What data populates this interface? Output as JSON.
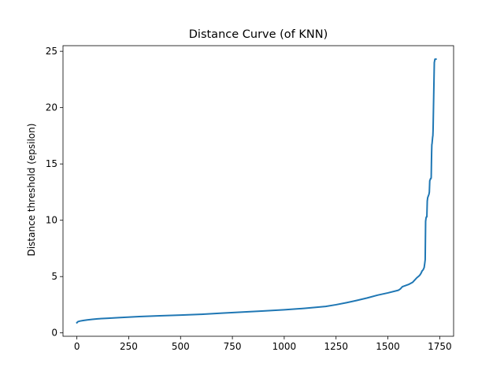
{
  "chart_data": {
    "type": "line",
    "title": "Distance Curve (of KNN)",
    "xlabel": "",
    "ylabel": "Distance threshold (epsilon)",
    "xlim": [
      -67,
      1817
    ],
    "ylim": [
      -0.3,
      25.5
    ],
    "xticks": [
      0,
      250,
      500,
      750,
      1000,
      1250,
      1500,
      1750
    ],
    "yticks": [
      0,
      5,
      10,
      15,
      20,
      25
    ],
    "grid": false,
    "color": "#1f77b4",
    "series": [
      {
        "x": [
          0,
          5,
          15,
          30,
          50,
          75,
          100,
          150,
          200,
          300,
          400,
          500,
          600,
          700,
          800,
          900,
          1000,
          1100,
          1200,
          1250,
          1300,
          1350,
          1400,
          1450,
          1500,
          1550,
          1560,
          1565,
          1570,
          1600,
          1620,
          1640,
          1650,
          1655,
          1660,
          1665,
          1670,
          1675,
          1678,
          1680,
          1682,
          1684,
          1686,
          1688,
          1690,
          1692,
          1694,
          1696,
          1698,
          1700,
          1702,
          1704,
          1706,
          1707,
          1708,
          1709,
          1710,
          1711,
          1712,
          1713,
          1714,
          1715,
          1716,
          1717,
          1718,
          1719,
          1720,
          1721,
          1722,
          1723,
          1724,
          1725,
          1726,
          1727,
          1728,
          1729,
          1730,
          1731,
          1732
        ],
        "y": [
          0.9,
          1.0,
          1.05,
          1.1,
          1.15,
          1.2,
          1.25,
          1.3,
          1.35,
          1.45,
          1.52,
          1.58,
          1.65,
          1.75,
          1.85,
          1.95,
          2.05,
          2.18,
          2.35,
          2.5,
          2.68,
          2.88,
          3.1,
          3.35,
          3.55,
          3.78,
          3.9,
          4.0,
          4.1,
          4.3,
          4.5,
          4.9,
          5.05,
          5.15,
          5.3,
          5.5,
          5.6,
          5.8,
          6.2,
          6.5,
          9.9,
          10.2,
          10.3,
          10.3,
          11.7,
          12.0,
          12.1,
          12.2,
          12.3,
          12.5,
          13.5,
          13.6,
          13.7,
          13.7,
          13.7,
          13.8,
          15.0,
          16.0,
          16.7,
          16.8,
          17.0,
          17.2,
          17.4,
          17.5,
          18.0,
          19.0,
          20.0,
          21.0,
          22.0,
          23.0,
          24.0,
          24.1,
          24.2,
          24.3,
          24.3,
          24.3,
          24.3,
          24.3,
          24.3
        ]
      }
    ]
  }
}
